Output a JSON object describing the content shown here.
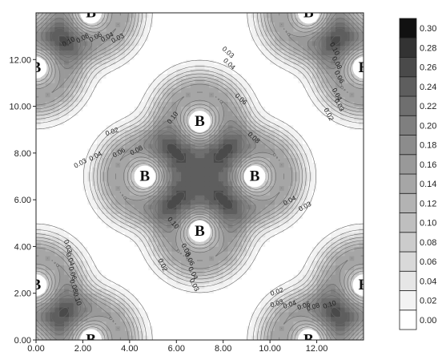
{
  "chart_data": {
    "type": "heatmap",
    "title": "",
    "xlabel": "",
    "ylabel": "",
    "xlim": [
      0,
      14
    ],
    "ylim": [
      0,
      14
    ],
    "x_ticks": [
      "0.00",
      "2.00",
      "4.00",
      "6.00",
      "8.00",
      "10.00",
      "12.00"
    ],
    "y_ticks": [
      "0.00",
      "2.00",
      "4.00",
      "6.00",
      "8.00",
      "10.00",
      "12.00"
    ],
    "colorbar": {
      "levels": [
        "0.00",
        "0.02",
        "0.04",
        "0.06",
        "0.08",
        "0.10",
        "0.12",
        "0.14",
        "0.16",
        "0.18",
        "0.20",
        "0.22",
        "0.24",
        "0.26",
        "0.28",
        "0.30"
      ],
      "colors": [
        "#ffffff",
        "#f3f3f3",
        "#e6e6e6",
        "#d9d9d9",
        "#cccccc",
        "#bfbfbf",
        "#b3b3b3",
        "#a6a6a6",
        "#999999",
        "#8c8c8c",
        "#7f7f7f",
        "#6f6f6f",
        "#5e5e5e",
        "#4a4a4a",
        "#333333",
        "#111111"
      ]
    },
    "atoms": [
      {
        "label": "B",
        "x": 7.0,
        "y": 9.35
      },
      {
        "label": "B",
        "x": 7.0,
        "y": 4.65
      },
      {
        "label": "B",
        "x": 4.65,
        "y": 7.0
      },
      {
        "label": "B",
        "x": 9.35,
        "y": 7.0
      },
      {
        "label": "B",
        "x": 2.35,
        "y": 14.0
      },
      {
        "label": "B",
        "x": 11.65,
        "y": 14.0
      },
      {
        "label": "B",
        "x": 0.0,
        "y": 11.65
      },
      {
        "label": "B",
        "x": 14.0,
        "y": 11.65
      },
      {
        "label": "B",
        "x": 2.35,
        "y": 0.0
      },
      {
        "label": "B",
        "x": 11.65,
        "y": 0.0
      },
      {
        "label": "B",
        "x": 0.0,
        "y": 2.35
      },
      {
        "label": "B",
        "x": 14.0,
        "y": 2.35
      }
    ],
    "contour_labels": [
      {
        "text": "0.10",
        "x": 1.4,
        "y": 12.75,
        "angle": -28
      },
      {
        "text": "0.08",
        "x": 2.0,
        "y": 12.9,
        "angle": -28
      },
      {
        "text": "0.06",
        "x": 2.55,
        "y": 12.95,
        "angle": -28
      },
      {
        "text": "0.04",
        "x": 3.05,
        "y": 12.95,
        "angle": -28
      },
      {
        "text": "0.03",
        "x": 3.5,
        "y": 12.9,
        "angle": -28
      },
      {
        "text": "0.03",
        "x": 8.2,
        "y": 12.3,
        "angle": 42
      },
      {
        "text": "0.04",
        "x": 8.25,
        "y": 11.8,
        "angle": 42
      },
      {
        "text": "0.06",
        "x": 8.75,
        "y": 10.3,
        "angle": 42
      },
      {
        "text": "0.08",
        "x": 9.3,
        "y": 8.65,
        "angle": 42
      },
      {
        "text": "0.10",
        "x": 12.75,
        "y": 12.45,
        "angle": 62
      },
      {
        "text": "0.08",
        "x": 12.85,
        "y": 11.85,
        "angle": 62
      },
      {
        "text": "0.06",
        "x": 12.95,
        "y": 11.25,
        "angle": 62
      },
      {
        "text": "0.04",
        "x": 12.85,
        "y": 10.5,
        "angle": 62
      },
      {
        "text": "0.03",
        "x": 12.95,
        "y": 10.05,
        "angle": 62
      },
      {
        "text": "0.02",
        "x": 12.5,
        "y": 9.65,
        "angle": 62
      },
      {
        "text": "0.02",
        "x": 3.25,
        "y": 8.9,
        "angle": -18
      },
      {
        "text": "0.10",
        "x": 5.85,
        "y": 9.5,
        "angle": -52
      },
      {
        "text": "0.03",
        "x": 1.9,
        "y": 7.55,
        "angle": -28
      },
      {
        "text": "0.04",
        "x": 2.55,
        "y": 7.85,
        "angle": -28
      },
      {
        "text": "0.06",
        "x": 3.55,
        "y": 8.0,
        "angle": -28
      },
      {
        "text": "0.08",
        "x": 4.3,
        "y": 8.1,
        "angle": -28
      },
      {
        "text": "0.04",
        "x": 10.85,
        "y": 5.95,
        "angle": -28
      },
      {
        "text": "0.03",
        "x": 11.5,
        "y": 5.7,
        "angle": -28
      },
      {
        "text": "0.10",
        "x": 5.85,
        "y": 5.0,
        "angle": 48
      },
      {
        "text": "0.08",
        "x": 6.4,
        "y": 3.85,
        "angle": 62
      },
      {
        "text": "0.06",
        "x": 6.55,
        "y": 3.45,
        "angle": 62
      },
      {
        "text": "0.04",
        "x": 6.7,
        "y": 2.85,
        "angle": 62
      },
      {
        "text": "0.03",
        "x": 6.75,
        "y": 2.35,
        "angle": 62
      },
      {
        "text": "0.02",
        "x": 5.4,
        "y": 3.2,
        "angle": 65
      },
      {
        "text": "0.03",
        "x": 1.35,
        "y": 4.0,
        "angle": 72
      },
      {
        "text": "0.04",
        "x": 1.45,
        "y": 3.45,
        "angle": 72
      },
      {
        "text": "0.06",
        "x": 1.55,
        "y": 2.85,
        "angle": 72
      },
      {
        "text": "0.08",
        "x": 1.6,
        "y": 2.3,
        "angle": 72
      },
      {
        "text": "0.10",
        "x": 1.75,
        "y": 1.75,
        "angle": 72
      },
      {
        "text": "0.02",
        "x": 10.3,
        "y": 2.05,
        "angle": -18
      },
      {
        "text": "0.03",
        "x": 10.3,
        "y": 1.55,
        "angle": -18
      },
      {
        "text": "0.04",
        "x": 10.85,
        "y": 1.5,
        "angle": -18
      },
      {
        "text": "0.06",
        "x": 11.45,
        "y": 1.45,
        "angle": -18
      },
      {
        "text": "0.08",
        "x": 11.85,
        "y": 1.4,
        "angle": -18
      },
      {
        "text": "0.10",
        "x": 12.55,
        "y": 1.5,
        "angle": -18
      }
    ]
  }
}
